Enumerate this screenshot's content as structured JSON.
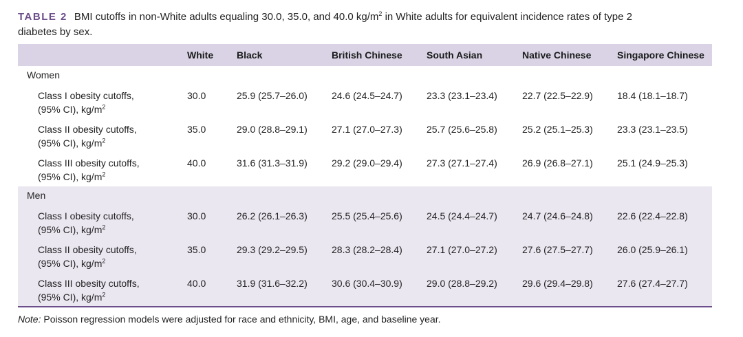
{
  "caption": {
    "label": "TABLE 2",
    "text_before_sup": "BMI cutoffs in non-White adults equaling 30.0, 35.0, and 40.0 kg/m",
    "sup": "2",
    "text_after_sup": " in White adults for equivalent incidence rates of type 2",
    "line2": "diabetes by sex."
  },
  "columns": [
    "",
    "White",
    "Black",
    "British Chinese",
    "South Asian",
    "Native Chinese",
    "Singapore Chinese"
  ],
  "row_label_line2": "(95% CI), kg/m",
  "row_label_sup": "2",
  "groups": [
    {
      "name": "Women",
      "rows": [
        {
          "label": "Class I obesity cutoffs,",
          "values": [
            "30.0",
            "25.9 (25.7–26.0)",
            "24.6 (24.5–24.7)",
            "23.3 (23.1–23.4)",
            "22.7 (22.5–22.9)",
            "18.4 (18.1–18.7)"
          ]
        },
        {
          "label": "Class II obesity cutoffs,",
          "values": [
            "35.0",
            "29.0 (28.8–29.1)",
            "27.1 (27.0–27.3)",
            "25.7 (25.6–25.8)",
            "25.2 (25.1–25.3)",
            "23.3 (23.1–23.5)"
          ]
        },
        {
          "label": "Class III obesity cutoffs,",
          "values": [
            "40.0",
            "31.6 (31.3–31.9)",
            "29.2 (29.0–29.4)",
            "27.3 (27.1–27.4)",
            "26.9 (26.8–27.1)",
            "25.1 (24.9–25.3)"
          ]
        }
      ]
    },
    {
      "name": "Men",
      "rows": [
        {
          "label": "Class I obesity cutoffs,",
          "values": [
            "30.0",
            "26.2 (26.1–26.3)",
            "25.5 (25.4–25.6)",
            "24.5 (24.4–24.7)",
            "24.7 (24.6–24.8)",
            "22.6 (22.4–22.8)"
          ]
        },
        {
          "label": "Class II obesity cutoffs,",
          "values": [
            "35.0",
            "29.3 (29.2–29.5)",
            "28.3 (28.2–28.4)",
            "27.1 (27.0–27.2)",
            "27.6 (27.5–27.7)",
            "26.0 (25.9–26.1)"
          ]
        },
        {
          "label": "Class III obesity cutoffs,",
          "values": [
            "40.0",
            "31.9 (31.6–32.2)",
            "30.6 (30.4–30.9)",
            "29.0 (28.8–29.2)",
            "29.6 (29.4–29.8)",
            "27.6 (27.4–27.7)"
          ]
        }
      ]
    }
  ],
  "note": {
    "lead": "Note:",
    "text": " Poisson regression models were adjusted for race and ethnicity, BMI, age, and baseline year."
  },
  "colors": {
    "accent": "#6b4e8a",
    "header_bg": "#d9d3e5",
    "men_bg": "#ebe7f1"
  }
}
